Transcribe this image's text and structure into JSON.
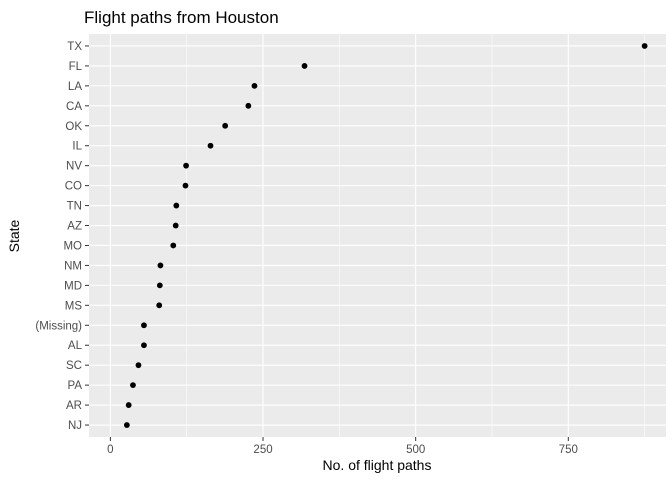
{
  "chart_data": {
    "type": "scatter",
    "title": "Flight paths from Houston",
    "xlabel": "No. of flight paths",
    "ylabel": "State",
    "xlim": [
      -35,
      910
    ],
    "xticks": [
      0,
      250,
      500,
      750
    ],
    "categories": [
      "TX",
      "FL",
      "LA",
      "CA",
      "OK",
      "IL",
      "NV",
      "CO",
      "TN",
      "AZ",
      "MO",
      "NM",
      "MD",
      "MS",
      "(Missing)",
      "AL",
      "SC",
      "PA",
      "AR",
      "NJ"
    ],
    "values": [
      875,
      318,
      236,
      226,
      188,
      164,
      124,
      123,
      108,
      107,
      103,
      82,
      81,
      80,
      55,
      55,
      46,
      37,
      30,
      27
    ],
    "grid": true,
    "legend": "none",
    "colors": {
      "panel": "#ebebeb",
      "grid": "#ffffff",
      "point": "#000000",
      "tick": "#333333"
    }
  }
}
